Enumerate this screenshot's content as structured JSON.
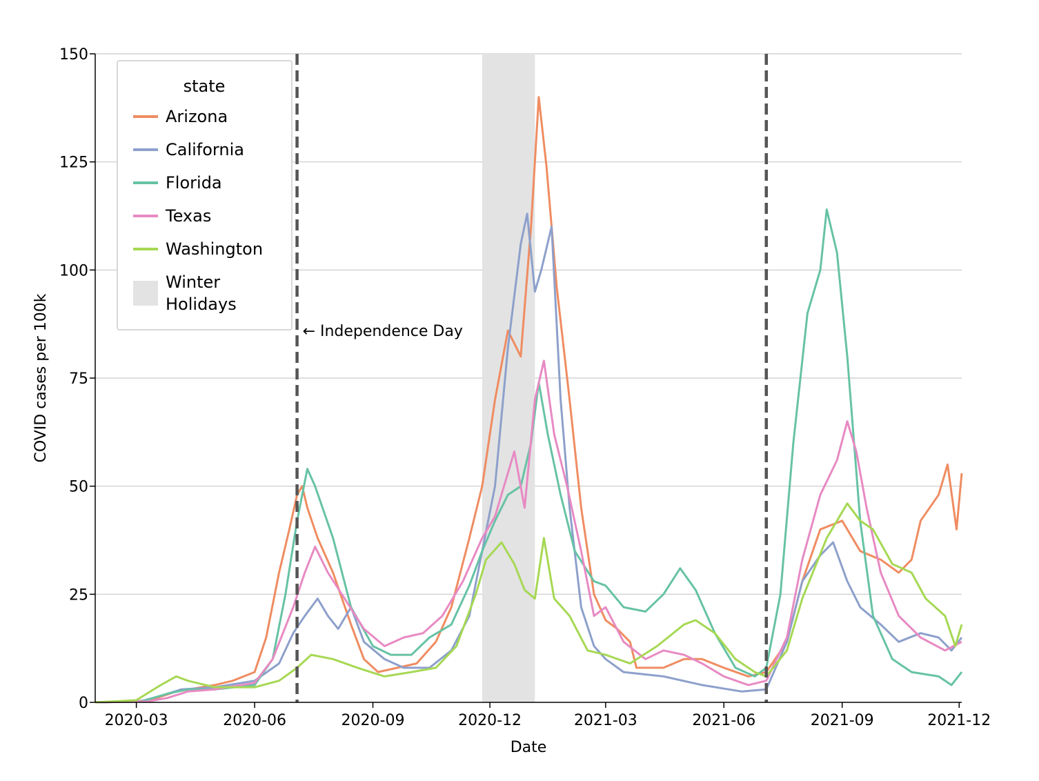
{
  "chart_data": {
    "type": "line",
    "xlabel": "Date",
    "ylabel": "COVID cases per 100k",
    "xlim": [
      "2020-01-29",
      "2021-12-03"
    ],
    "ylim": [
      0,
      150
    ],
    "y_ticks": [
      0,
      25,
      50,
      75,
      100,
      125,
      150
    ],
    "x_ticks": [
      "2020-03",
      "2020-06",
      "2020-09",
      "2020-12",
      "2021-03",
      "2021-06",
      "2021-09",
      "2021-12"
    ],
    "grid": "horizontal",
    "legend": {
      "title": "state",
      "placement": "top-left",
      "span_label_lines": [
        "Winter",
        "Holidays"
      ]
    },
    "shaded_span": {
      "label": "Winter Holidays",
      "start": "2020-11-25",
      "end": "2021-01-05",
      "color": "#e3e3e3"
    },
    "vlines": [
      {
        "date": "2020-07-04",
        "label": "Independence Day"
      },
      {
        "date": "2021-07-04",
        "label": ""
      }
    ],
    "annotation": {
      "text": "← Independence Day",
      "date": "2020-07-04",
      "y": 86
    },
    "series": [
      {
        "name": "Arizona",
        "color": "#ef8c61",
        "points": [
          [
            "2020-01-29",
            0
          ],
          [
            "2020-03-01",
            0.2
          ],
          [
            "2020-03-15",
            0.8
          ],
          [
            "2020-04-01",
            2.5
          ],
          [
            "2020-04-15",
            3.2
          ],
          [
            "2020-05-01",
            4
          ],
          [
            "2020-05-15",
            5
          ],
          [
            "2020-06-01",
            7
          ],
          [
            "2020-06-10",
            15
          ],
          [
            "2020-06-20",
            30
          ],
          [
            "2020-06-28",
            40
          ],
          [
            "2020-07-04",
            48
          ],
          [
            "2020-07-08",
            50
          ],
          [
            "2020-07-12",
            45
          ],
          [
            "2020-07-20",
            38
          ],
          [
            "2020-08-01",
            30
          ],
          [
            "2020-08-15",
            18
          ],
          [
            "2020-08-25",
            10
          ],
          [
            "2020-09-05",
            7
          ],
          [
            "2020-09-20",
            8
          ],
          [
            "2020-10-05",
            9
          ],
          [
            "2020-10-20",
            14
          ],
          [
            "2020-11-01",
            22
          ],
          [
            "2020-11-15",
            38
          ],
          [
            "2020-11-25",
            50
          ],
          [
            "2020-12-05",
            70
          ],
          [
            "2020-12-15",
            86
          ],
          [
            "2020-12-25",
            80
          ],
          [
            "2021-01-02",
            110
          ],
          [
            "2021-01-08",
            140
          ],
          [
            "2021-01-14",
            124
          ],
          [
            "2021-01-22",
            96
          ],
          [
            "2021-02-01",
            70
          ],
          [
            "2021-02-10",
            45
          ],
          [
            "2021-02-20",
            25
          ],
          [
            "2021-03-01",
            19
          ],
          [
            "2021-03-10",
            17
          ],
          [
            "2021-03-20",
            14
          ],
          [
            "2021-03-25",
            8
          ],
          [
            "2021-04-15",
            8
          ],
          [
            "2021-05-01",
            10
          ],
          [
            "2021-05-15",
            10
          ],
          [
            "2021-06-01",
            8
          ],
          [
            "2021-06-20",
            6
          ],
          [
            "2021-07-04",
            7
          ],
          [
            "2021-07-20",
            14
          ],
          [
            "2021-08-01",
            28
          ],
          [
            "2021-08-15",
            40
          ],
          [
            "2021-09-01",
            42
          ],
          [
            "2021-09-15",
            35
          ],
          [
            "2021-10-01",
            33
          ],
          [
            "2021-10-15",
            30
          ],
          [
            "2021-10-25",
            33
          ],
          [
            "2021-11-01",
            42
          ],
          [
            "2021-11-15",
            48
          ],
          [
            "2021-11-22",
            55
          ],
          [
            "2021-11-29",
            40
          ],
          [
            "2021-12-03",
            53
          ]
        ]
      },
      {
        "name": "California",
        "color": "#8da0cb",
        "points": [
          [
            "2020-01-29",
            0
          ],
          [
            "2020-03-05",
            0.3
          ],
          [
            "2020-03-20",
            1.5
          ],
          [
            "2020-04-05",
            3
          ],
          [
            "2020-05-01",
            3.5
          ],
          [
            "2020-06-01",
            5
          ],
          [
            "2020-06-20",
            9
          ],
          [
            "2020-07-01",
            16
          ],
          [
            "2020-07-10",
            20
          ],
          [
            "2020-07-20",
            24
          ],
          [
            "2020-07-28",
            20
          ],
          [
            "2020-08-05",
            17
          ],
          [
            "2020-08-15",
            22
          ],
          [
            "2020-08-25",
            14
          ],
          [
            "2020-09-10",
            10
          ],
          [
            "2020-09-25",
            8
          ],
          [
            "2020-10-15",
            8
          ],
          [
            "2020-11-01",
            12
          ],
          [
            "2020-11-15",
            20
          ],
          [
            "2020-11-25",
            35
          ],
          [
            "2020-12-05",
            50
          ],
          [
            "2020-12-15",
            82
          ],
          [
            "2020-12-25",
            106
          ],
          [
            "2020-12-30",
            113
          ],
          [
            "2021-01-05",
            95
          ],
          [
            "2021-01-10",
            100
          ],
          [
            "2021-01-18",
            110
          ],
          [
            "2021-01-25",
            70
          ],
          [
            "2021-02-01",
            45
          ],
          [
            "2021-02-10",
            22
          ],
          [
            "2021-02-20",
            13
          ],
          [
            "2021-03-01",
            10
          ],
          [
            "2021-03-15",
            7
          ],
          [
            "2021-04-15",
            6
          ],
          [
            "2021-05-15",
            4
          ],
          [
            "2021-06-15",
            2.5
          ],
          [
            "2021-07-04",
            3
          ],
          [
            "2021-07-20",
            14
          ],
          [
            "2021-08-01",
            28
          ],
          [
            "2021-08-15",
            34
          ],
          [
            "2021-08-25",
            37
          ],
          [
            "2021-09-05",
            28
          ],
          [
            "2021-09-15",
            22
          ],
          [
            "2021-10-01",
            18
          ],
          [
            "2021-10-15",
            14
          ],
          [
            "2021-11-01",
            16
          ],
          [
            "2021-11-15",
            15
          ],
          [
            "2021-11-25",
            12
          ],
          [
            "2021-12-03",
            15
          ]
        ]
      },
      {
        "name": "Florida",
        "color": "#66c2a5",
        "points": [
          [
            "2020-01-29",
            0
          ],
          [
            "2020-03-05",
            0.2
          ],
          [
            "2020-03-25",
            2
          ],
          [
            "2020-04-10",
            3
          ],
          [
            "2020-05-01",
            3
          ],
          [
            "2020-06-01",
            4
          ],
          [
            "2020-06-15",
            10
          ],
          [
            "2020-06-25",
            25
          ],
          [
            "2020-07-04",
            42
          ],
          [
            "2020-07-12",
            54
          ],
          [
            "2020-07-18",
            50
          ],
          [
            "2020-08-01",
            38
          ],
          [
            "2020-08-15",
            22
          ],
          [
            "2020-09-01",
            13
          ],
          [
            "2020-09-15",
            11
          ],
          [
            "2020-10-01",
            11
          ],
          [
            "2020-10-15",
            15
          ],
          [
            "2020-11-01",
            18
          ],
          [
            "2020-11-15",
            27
          ],
          [
            "2020-11-25",
            35
          ],
          [
            "2020-12-05",
            42
          ],
          [
            "2020-12-15",
            48
          ],
          [
            "2020-12-25",
            50
          ],
          [
            "2021-01-02",
            60
          ],
          [
            "2021-01-08",
            74
          ],
          [
            "2021-01-15",
            62
          ],
          [
            "2021-01-25",
            48
          ],
          [
            "2021-02-05",
            35
          ],
          [
            "2021-02-20",
            28
          ],
          [
            "2021-03-01",
            27
          ],
          [
            "2021-03-15",
            22
          ],
          [
            "2021-04-01",
            21
          ],
          [
            "2021-04-15",
            25
          ],
          [
            "2021-04-28",
            31
          ],
          [
            "2021-05-10",
            26
          ],
          [
            "2021-05-25",
            16
          ],
          [
            "2021-06-10",
            8
          ],
          [
            "2021-06-25",
            6
          ],
          [
            "2021-07-04",
            8
          ],
          [
            "2021-07-15",
            25
          ],
          [
            "2021-07-25",
            60
          ],
          [
            "2021-08-05",
            90
          ],
          [
            "2021-08-15",
            100
          ],
          [
            "2021-08-20",
            114
          ],
          [
            "2021-08-28",
            104
          ],
          [
            "2021-09-05",
            80
          ],
          [
            "2021-09-15",
            42
          ],
          [
            "2021-09-25",
            20
          ],
          [
            "2021-10-10",
            10
          ],
          [
            "2021-10-25",
            7
          ],
          [
            "2021-11-15",
            6
          ],
          [
            "2021-11-25",
            4
          ],
          [
            "2021-12-03",
            7
          ]
        ]
      },
      {
        "name": "Texas",
        "color": "#e78ac3",
        "points": [
          [
            "2020-01-29",
            0
          ],
          [
            "2020-03-10",
            0.2
          ],
          [
            "2020-03-25",
            1
          ],
          [
            "2020-04-10",
            2.5
          ],
          [
            "2020-05-01",
            3
          ],
          [
            "2020-06-01",
            4.5
          ],
          [
            "2020-06-15",
            10
          ],
          [
            "2020-07-01",
            22
          ],
          [
            "2020-07-10",
            30
          ],
          [
            "2020-07-18",
            36
          ],
          [
            "2020-07-28",
            30
          ],
          [
            "2020-08-10",
            24
          ],
          [
            "2020-08-25",
            17
          ],
          [
            "2020-09-10",
            13
          ],
          [
            "2020-09-25",
            15
          ],
          [
            "2020-10-10",
            16
          ],
          [
            "2020-10-25",
            20
          ],
          [
            "2020-11-10",
            28
          ],
          [
            "2020-11-25",
            38
          ],
          [
            "2020-12-05",
            43
          ],
          [
            "2020-12-20",
            58
          ],
          [
            "2020-12-28",
            45
          ],
          [
            "2021-01-05",
            70
          ],
          [
            "2021-01-12",
            79
          ],
          [
            "2021-01-20",
            62
          ],
          [
            "2021-01-30",
            50
          ],
          [
            "2021-02-10",
            35
          ],
          [
            "2021-02-20",
            20
          ],
          [
            "2021-03-01",
            22
          ],
          [
            "2021-03-15",
            14
          ],
          [
            "2021-04-01",
            10
          ],
          [
            "2021-04-15",
            12
          ],
          [
            "2021-05-01",
            11
          ],
          [
            "2021-05-15",
            9
          ],
          [
            "2021-06-01",
            6
          ],
          [
            "2021-06-20",
            4
          ],
          [
            "2021-07-04",
            5
          ],
          [
            "2021-07-20",
            15
          ],
          [
            "2021-08-01",
            33
          ],
          [
            "2021-08-15",
            48
          ],
          [
            "2021-08-28",
            56
          ],
          [
            "2021-09-05",
            65
          ],
          [
            "2021-09-12",
            58
          ],
          [
            "2021-09-20",
            45
          ],
          [
            "2021-10-01",
            30
          ],
          [
            "2021-10-15",
            20
          ],
          [
            "2021-11-01",
            15
          ],
          [
            "2021-11-20",
            12
          ],
          [
            "2021-12-03",
            14
          ]
        ]
      },
      {
        "name": "Washington",
        "color": "#a6d854",
        "points": [
          [
            "2020-01-29",
            0
          ],
          [
            "2020-03-01",
            0.5
          ],
          [
            "2020-03-20",
            4
          ],
          [
            "2020-04-01",
            6
          ],
          [
            "2020-04-10",
            5
          ],
          [
            "2020-05-01",
            3.5
          ],
          [
            "2020-06-01",
            3.5
          ],
          [
            "2020-06-20",
            5
          ],
          [
            "2020-07-04",
            8
          ],
          [
            "2020-07-15",
            11
          ],
          [
            "2020-08-01",
            10
          ],
          [
            "2020-08-20",
            8
          ],
          [
            "2020-09-10",
            6
          ],
          [
            "2020-10-01",
            7
          ],
          [
            "2020-10-20",
            8
          ],
          [
            "2020-11-05",
            13
          ],
          [
            "2020-11-20",
            25
          ],
          [
            "2020-11-28",
            33
          ],
          [
            "2020-12-10",
            37
          ],
          [
            "2020-12-20",
            32
          ],
          [
            "2020-12-28",
            26
          ],
          [
            "2021-01-05",
            24
          ],
          [
            "2021-01-12",
            38
          ],
          [
            "2021-01-20",
            24
          ],
          [
            "2021-02-01",
            20
          ],
          [
            "2021-02-15",
            12
          ],
          [
            "2021-03-01",
            11
          ],
          [
            "2021-03-20",
            9
          ],
          [
            "2021-04-10",
            13
          ],
          [
            "2021-05-01",
            18
          ],
          [
            "2021-05-10",
            19
          ],
          [
            "2021-05-25",
            16
          ],
          [
            "2021-06-10",
            10
          ],
          [
            "2021-06-25",
            7
          ],
          [
            "2021-07-04",
            6
          ],
          [
            "2021-07-20",
            12
          ],
          [
            "2021-08-01",
            24
          ],
          [
            "2021-08-20",
            38
          ],
          [
            "2021-09-05",
            46
          ],
          [
            "2021-09-15",
            42
          ],
          [
            "2021-09-25",
            40
          ],
          [
            "2021-10-10",
            32
          ],
          [
            "2021-10-25",
            30
          ],
          [
            "2021-11-05",
            24
          ],
          [
            "2021-11-20",
            20
          ],
          [
            "2021-11-28",
            13
          ],
          [
            "2021-12-03",
            18
          ]
        ]
      }
    ]
  }
}
